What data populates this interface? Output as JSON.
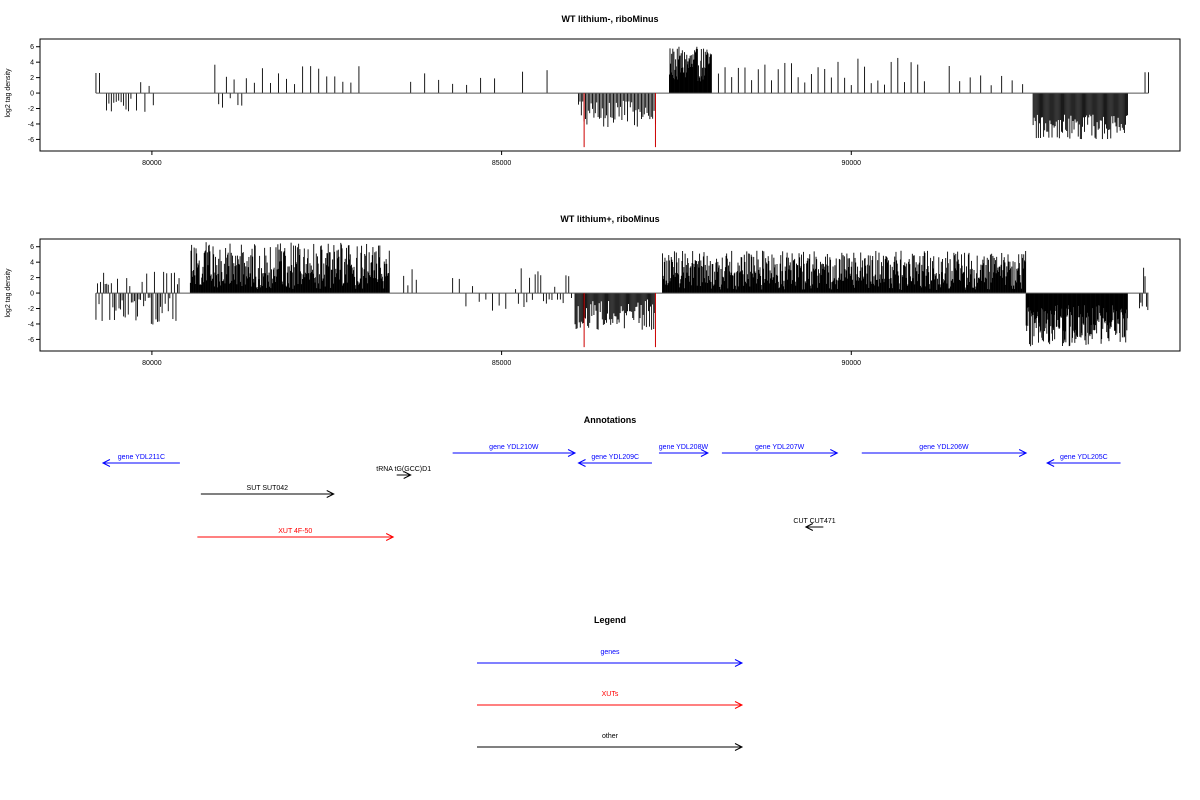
{
  "chart_data": [
    {
      "type": "bar",
      "title": "WT lithium-, riboMinus",
      "ylabel": "log2 tag density",
      "xlabel": "",
      "xlim": [
        78400,
        94700
      ],
      "ylim": [
        -7.5,
        7
      ],
      "xticks": [
        80000,
        85000,
        90000
      ],
      "yticks": [
        6,
        4,
        2,
        0,
        -2,
        -4,
        -6
      ],
      "highlight_color": "#cc0000",
      "segments": [
        {
          "from": 79200,
          "to": 79250,
          "step": 50,
          "min": 2.6,
          "max": 2.6
        },
        {
          "from": 79350,
          "to": 79700,
          "step": 35,
          "min": -2.8,
          "max": -0.6
        },
        {
          "from": 79780,
          "to": 80060,
          "step": 60,
          "min": -2.8,
          "max": 1.8
        },
        {
          "from": 80900,
          "to": 81300,
          "step": 55,
          "min": -2.2,
          "max": 4.1
        },
        {
          "from": 81350,
          "to": 83000,
          "step": 115,
          "min": 1.0,
          "max": 3.5
        },
        {
          "from": 83700,
          "to": 85000,
          "step": 200,
          "min": 1.0,
          "max": 2.6
        },
        {
          "from": 85300,
          "to": 85650,
          "step": 350,
          "min": 2.6,
          "max": 3.2
        },
        {
          "from": 86100,
          "to": 87200,
          "step": 20,
          "min": -4.4,
          "max": -1.0
        },
        {
          "from": 87400,
          "to": 88000,
          "step": 8,
          "min": 1.5,
          "max": 6.0
        },
        {
          "from": 88100,
          "to": 91100,
          "step": 95,
          "min": 0.8,
          "max": 4.7
        },
        {
          "from": 91400,
          "to": 92500,
          "step": 150,
          "min": 1.0,
          "max": 3.8
        },
        {
          "from": 92600,
          "to": 93950,
          "step": 15,
          "min": -6.0,
          "max": -2.8
        },
        {
          "from": 94200,
          "to": 94250,
          "step": 50,
          "min": 2.7,
          "max": 2.7
        }
      ],
      "highlights": [
        {
          "x": 86180,
          "y": -7.0
        },
        {
          "x": 87200,
          "y": -7.0
        }
      ]
    },
    {
      "type": "bar",
      "title": "WT lithium+, riboMinus",
      "ylabel": "log2 tag density",
      "xlabel": "",
      "xlim": [
        78400,
        94700
      ],
      "ylim": [
        -7.5,
        7
      ],
      "xticks": [
        80000,
        85000,
        90000
      ],
      "yticks": [
        6,
        4,
        2,
        0,
        -2,
        -4,
        -6
      ],
      "highlight_color": "#cc0000",
      "segments": [
        {
          "from": 79200,
          "to": 80400,
          "step": 22,
          "min": -4.1,
          "max": 2.8
        },
        {
          "from": 80550,
          "to": 83400,
          "step": 9,
          "min": 0.5,
          "max": 6.6
        },
        {
          "from": 83600,
          "to": 83800,
          "step": 60,
          "min": 1.0,
          "max": 3.6
        },
        {
          "from": 84300,
          "to": 85100,
          "step": 95,
          "min": -2.4,
          "max": 2.3
        },
        {
          "from": 85200,
          "to": 86000,
          "step": 40,
          "min": -1.8,
          "max": 3.7
        },
        {
          "from": 86050,
          "to": 87200,
          "step": 15,
          "min": -4.8,
          "max": -0.8
        },
        {
          "from": 87300,
          "to": 92500,
          "step": 9,
          "min": 0.4,
          "max": 5.5
        },
        {
          "from": 92500,
          "to": 93950,
          "step": 8,
          "min": -6.9,
          "max": -1.5
        },
        {
          "from": 94120,
          "to": 94250,
          "step": 20,
          "min": -2.6,
          "max": 3.4
        }
      ],
      "highlights": [
        {
          "x": 86180,
          "y": -7.0
        },
        {
          "x": 87200,
          "y": -7.0
        }
      ]
    }
  ],
  "annotations": {
    "title": "Annotations",
    "features": [
      {
        "label": "gene YDL211C",
        "start": 79300,
        "end": 80400,
        "row": 2,
        "strand": "-",
        "color": "#0000ff"
      },
      {
        "label": "gene YDL210W",
        "start": 84300,
        "end": 86050,
        "row": 1,
        "strand": "+",
        "color": "#0000ff"
      },
      {
        "label": "gene YDL209C",
        "start": 86100,
        "end": 87150,
        "row": 2,
        "strand": "-",
        "color": "#0000ff"
      },
      {
        "label": "gene YDL208W",
        "start": 87250,
        "end": 87950,
        "row": 1,
        "strand": "+",
        "color": "#0000ff"
      },
      {
        "label": "gene YDL207W",
        "start": 88150,
        "end": 89800,
        "row": 1,
        "strand": "+",
        "color": "#0000ff"
      },
      {
        "label": "gene YDL206W",
        "start": 90150,
        "end": 92500,
        "row": 1,
        "strand": "+",
        "color": "#0000ff"
      },
      {
        "label": "gene YDL205C",
        "start": 92800,
        "end": 93850,
        "row": 2,
        "strand": "-",
        "color": "#0000ff"
      },
      {
        "label": "tRNA tG(GCC)D1",
        "start": 83500,
        "end": 83700,
        "row": 3,
        "strand": "+",
        "color": "#000000"
      },
      {
        "label": "SUT SUT042",
        "start": 80700,
        "end": 82600,
        "row": 4,
        "strand": "+",
        "color": "#000000"
      },
      {
        "label": "XUT 4F-50",
        "start": 80650,
        "end": 83450,
        "row": 6,
        "strand": "+",
        "color": "#ff0000"
      },
      {
        "label": "CUT CUT471",
        "start": 89350,
        "end": 89600,
        "row": 5,
        "strand": "-",
        "color": "#000000"
      }
    ]
  },
  "legend": {
    "title": "Legend",
    "items": [
      {
        "label": "genes",
        "color": "#0000ff"
      },
      {
        "label": "XUTs",
        "color": "#ff0000"
      },
      {
        "label": "other",
        "color": "#000000"
      }
    ]
  }
}
